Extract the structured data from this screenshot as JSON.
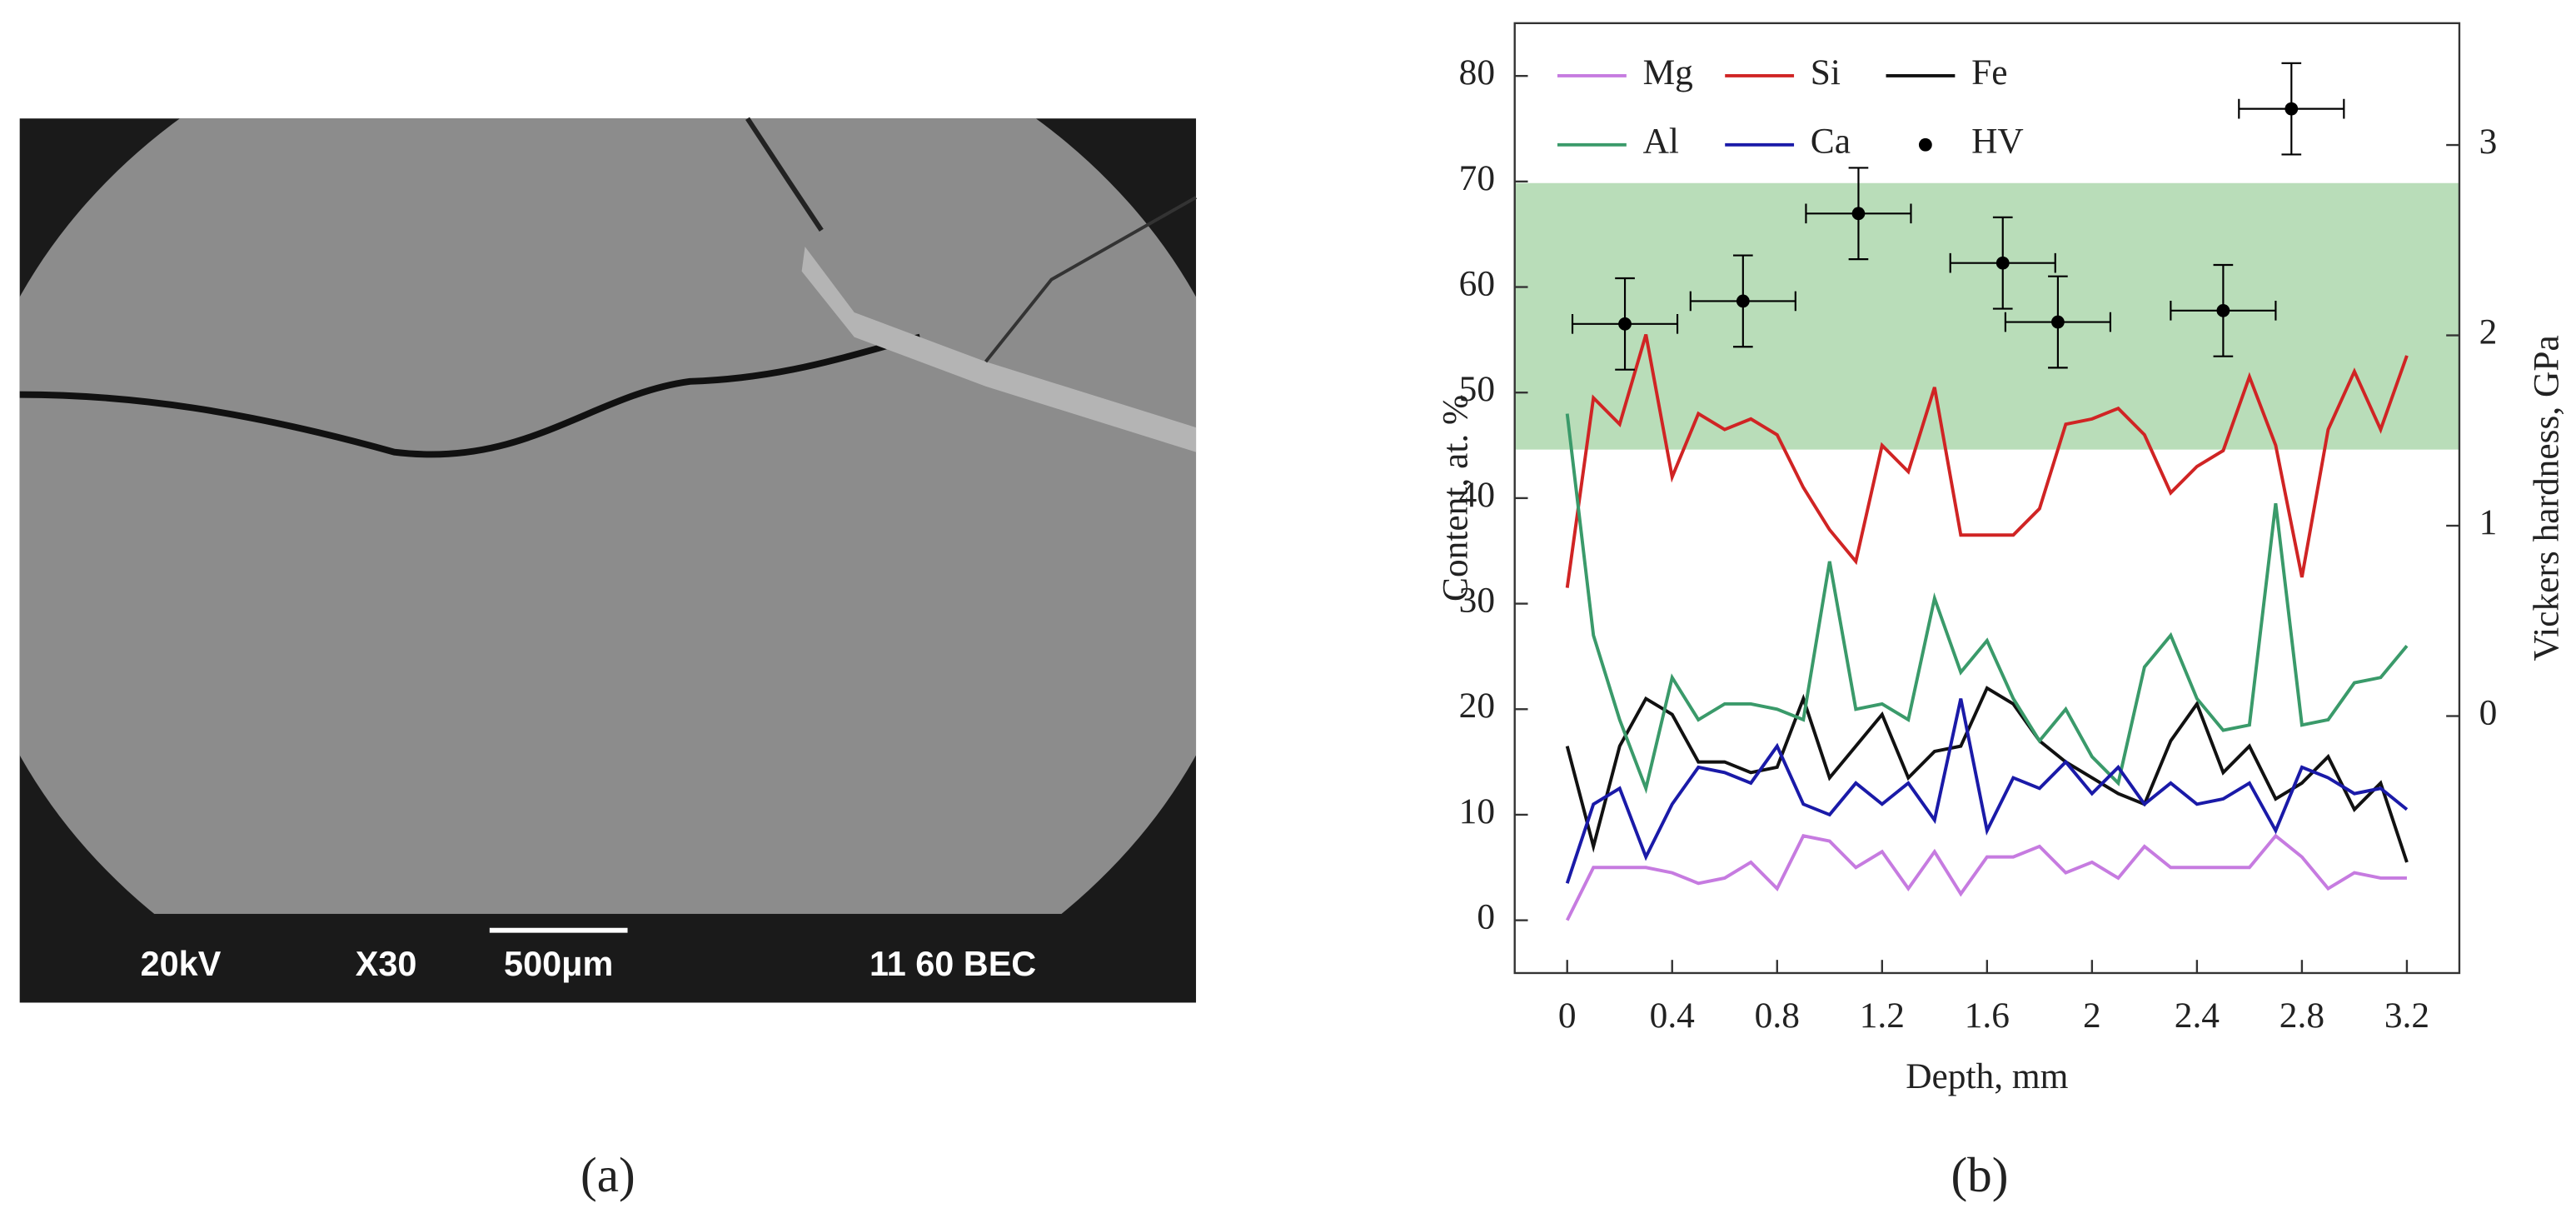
{
  "panel_a": {
    "labels": [
      "20kV",
      "X30",
      "500μm",
      "11 60 BEC"
    ],
    "caption": "(a)"
  },
  "chart_data": {
    "type": "line",
    "caption": "(b)",
    "xlabel": "Depth, mm",
    "ylabel": "Content, at. %",
    "y2label": "Vickers hardness, GPa",
    "xlim": [
      -0.2,
      3.4
    ],
    "xticks": [
      0,
      0.4,
      0.8,
      1.2,
      1.6,
      2,
      2.4,
      2.8,
      3.2
    ],
    "ylim": [
      -5,
      85
    ],
    "yticks": [
      0,
      10,
      20,
      30,
      40,
      50,
      60,
      70,
      80
    ],
    "y2lim": [
      -1.35,
      3.64
    ],
    "y2ticks": [
      0,
      1,
      2,
      3
    ],
    "shaded_band": [
      1.4,
      2.8
    ],
    "band_color": "#b9ddb9",
    "x": [
      0,
      0.1,
      0.2,
      0.3,
      0.4,
      0.5,
      0.6,
      0.7,
      0.8,
      0.9,
      1.0,
      1.1,
      1.2,
      1.3,
      1.4,
      1.5,
      1.6,
      1.7,
      1.8,
      1.9,
      2.0,
      2.1,
      2.2,
      2.3,
      2.4,
      2.5,
      2.6,
      2.7,
      2.8,
      2.9,
      3.0,
      3.1,
      3.2
    ],
    "series": [
      {
        "name": "Mg",
        "color": "#c67be0",
        "values": [
          0,
          5,
          5,
          5,
          4.5,
          3.5,
          4,
          5.5,
          3,
          8,
          7.5,
          5,
          6.5,
          3,
          6.5,
          2.5,
          6,
          6,
          7,
          4.5,
          5.5,
          4,
          7,
          5,
          5,
          5,
          5,
          8,
          6,
          3,
          4.5,
          4,
          4
        ]
      },
      {
        "name": "Si",
        "color": "#d02424",
        "values": [
          31.5,
          49.5,
          47,
          55.5,
          42,
          48,
          46.5,
          47.5,
          46,
          41,
          37,
          34,
          45,
          42.5,
          50.5,
          36.5,
          36.5,
          36.5,
          39,
          47,
          47.5,
          48.5,
          46,
          40.5,
          43,
          44.5,
          51.5,
          45,
          32.5,
          46.5,
          52,
          46.5,
          53.5
        ]
      },
      {
        "name": "Fe",
        "color": "#111111",
        "values": [
          16.5,
          7,
          16.5,
          21,
          19.5,
          15,
          15,
          14,
          14.5,
          21,
          13.5,
          16.5,
          19.5,
          13.5,
          16,
          16.5,
          22,
          20.5,
          17,
          15,
          13.5,
          12,
          11,
          17,
          20.5,
          14,
          16.5,
          11.5,
          13,
          15.5,
          10.5,
          13,
          5.5
        ]
      },
      {
        "name": "Al",
        "color": "#3a9a6a",
        "values": [
          48,
          27,
          19,
          12.5,
          23,
          19,
          20.5,
          20.5,
          20,
          19,
          34,
          20,
          20.5,
          19,
          30.5,
          23.5,
          26.5,
          21,
          17,
          20,
          15.5,
          13,
          24,
          27,
          21,
          18,
          18.5,
          39.5,
          18.5,
          19,
          22.5,
          23,
          26
        ]
      },
      {
        "name": "Ca",
        "color": "#1a1aa8",
        "values": [
          3.5,
          11,
          12.5,
          6,
          11,
          14.5,
          14,
          13,
          16.5,
          11,
          10,
          13,
          11,
          13,
          9.5,
          21,
          8.5,
          13.5,
          12.5,
          15,
          12,
          14.5,
          11,
          13,
          11,
          11.5,
          13,
          8.5,
          14.5,
          13.5,
          12,
          12.5,
          10.5
        ]
      },
      {
        "name": "HV",
        "color": "#000000",
        "axis": "y2",
        "type": "errorbar",
        "x": [
          0.22,
          0.67,
          1.11,
          1.66,
          1.87,
          2.5,
          2.76
        ],
        "values": [
          2.06,
          2.18,
          2.64,
          2.38,
          2.07,
          2.13,
          3.19
        ],
        "xerr": [
          0.2,
          0.2,
          0.2,
          0.2,
          0.2,
          0.2,
          0.2
        ],
        "yerr": [
          0.24,
          0.24,
          0.24,
          0.24,
          0.24,
          0.24,
          0.24
        ]
      }
    ]
  }
}
